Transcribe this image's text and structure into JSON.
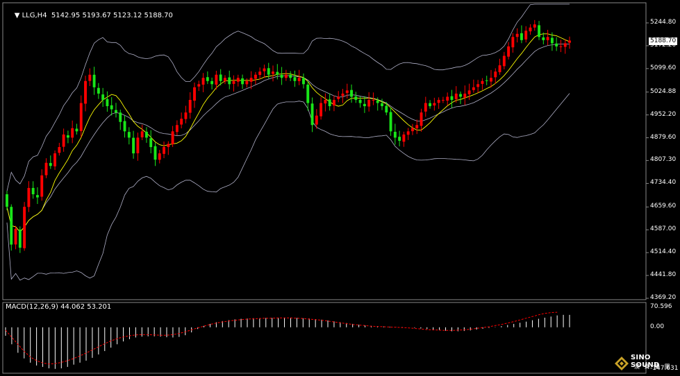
{
  "header": {
    "symbol": "LLG,H4",
    "ohlc": "5142.95 5193.67 5123.12 5188.70",
    "macd_label": "MACD(12,26,9) 44.062 53.201"
  },
  "current_price": "5188.70",
  "price_axis_labels": [
    "5244.80",
    "5172.20",
    "5099.60",
    "5024.88",
    "4952.20",
    "4879.60",
    "4807.30",
    "4734.40",
    "4659.60",
    "4587.00",
    "4514.40",
    "4441.80",
    "4369.20"
  ],
  "macd_axis_labels": [
    "70.596",
    "0.00",
    "-147.631"
  ],
  "watermark": {
    "line1": "SINO SOUND",
    "line2": "澳 聲 集 團",
    "icon": "diamond-logo-icon"
  },
  "colors": {
    "up": "#ff0000",
    "down": "#19e619",
    "signal": "#ff0000",
    "ma": "#ffff00",
    "bands": "#b0b0c8",
    "grid": "#888888"
  },
  "chart_data": [
    {
      "type": "candlestick",
      "title": "LLG,H4",
      "ylim": [
        4369.2,
        5272.0
      ],
      "y_ticks": [
        5244.8,
        5172.2,
        5099.6,
        5024.88,
        4952.2,
        4879.6,
        4807.3,
        4734.4,
        4659.6,
        4587.0,
        4514.4,
        4441.8,
        4369.2
      ],
      "overlays": [
        "bollinger-bands",
        "moving-average"
      ],
      "closes": [
        4660,
        4540,
        4590,
        4530,
        4660,
        4720,
        4700,
        4690,
        4760,
        4800,
        4790,
        4830,
        4850,
        4890,
        4880,
        4910,
        4900,
        4990,
        5060,
        5080,
        5040,
        5020,
        5000,
        4980,
        4970,
        4960,
        4930,
        4900,
        4880,
        4830,
        4880,
        4900,
        4880,
        4850,
        4810,
        4830,
        4850,
        4860,
        4900,
        4920,
        4940,
        4960,
        5000,
        5040,
        5050,
        5070,
        5060,
        5050,
        5080,
        5060,
        5070,
        5050,
        5060,
        5070,
        5050,
        5060,
        5070,
        5080,
        5090,
        5100,
        5080,
        5090,
        5080,
        5070,
        5080,
        5070,
        5060,
        5070,
        5050,
        4990,
        4920,
        4950,
        4990,
        5000,
        4980,
        5000,
        5010,
        5020,
        5030,
        5010,
        5000,
        4990,
        4980,
        5000,
        5000,
        4990,
        4980,
        4960,
        4900,
        4880,
        4870,
        4890,
        4900,
        4910,
        4920,
        4960,
        4990,
        4980,
        4990,
        5000,
        5000,
        5010,
        5000,
        5020,
        5010,
        5020,
        5030,
        5040,
        5050,
        5060,
        5060,
        5070,
        5090,
        5110,
        5140,
        5170,
        5200,
        5210,
        5190,
        5220,
        5230,
        5240,
        5200,
        5190,
        5200,
        5180,
        5170,
        5170,
        5180,
        5188.7
      ]
    },
    {
      "type": "bar",
      "title": "MACD(12,26,9) 44.062 53.201",
      "ylim": [
        -147.631,
        70.596
      ],
      "histogram": [
        -30,
        -60,
        -90,
        -110,
        -125,
        -135,
        -140,
        -145,
        -147,
        -145,
        -140,
        -132,
        -125,
        -118,
        -108,
        -96,
        -84,
        -72,
        -60,
        -50,
        -42,
        -36,
        -33,
        -32,
        -32,
        -33,
        -35,
        -36,
        -34,
        -28,
        -18,
        -6,
        5,
        12,
        18,
        22,
        25,
        28,
        30,
        31,
        32,
        32,
        33,
        33,
        34,
        34,
        34,
        33,
        32,
        31,
        29,
        27,
        24,
        21,
        18,
        15,
        12,
        9,
        7,
        5,
        4,
        3,
        2,
        1,
        1,
        0,
        -2,
        -4,
        -6,
        -8,
        -10,
        -12,
        -14,
        -14,
        -13,
        -11,
        -8,
        -5,
        -2,
        1,
        4,
        8,
        12,
        16,
        20,
        25,
        30,
        34,
        38,
        42,
        44,
        44.062
      ],
      "signal": [
        -10,
        -35,
        -60,
        -85,
        -105,
        -118,
        -126,
        -130,
        -128,
        -124,
        -118,
        -110,
        -101,
        -91,
        -80,
        -69,
        -58,
        -48,
        -40,
        -34,
        -30,
        -27,
        -26,
        -26,
        -27,
        -28,
        -28,
        -26,
        -22,
        -16,
        -9,
        -2,
        4,
        10,
        15,
        19,
        22,
        25,
        27,
        29,
        30,
        31,
        32,
        32,
        33,
        33,
        33,
        32,
        31,
        29,
        27,
        25,
        22,
        19,
        16,
        13,
        10,
        8,
        6,
        4,
        3,
        2,
        1,
        0,
        -1,
        -2,
        -4,
        -6,
        -8,
        -9,
        -10,
        -11,
        -11,
        -10,
        -9,
        -7,
        -4,
        -1,
        2,
        6,
        10,
        15,
        20,
        26,
        32,
        38,
        44,
        49,
        52,
        53.201
      ]
    }
  ]
}
